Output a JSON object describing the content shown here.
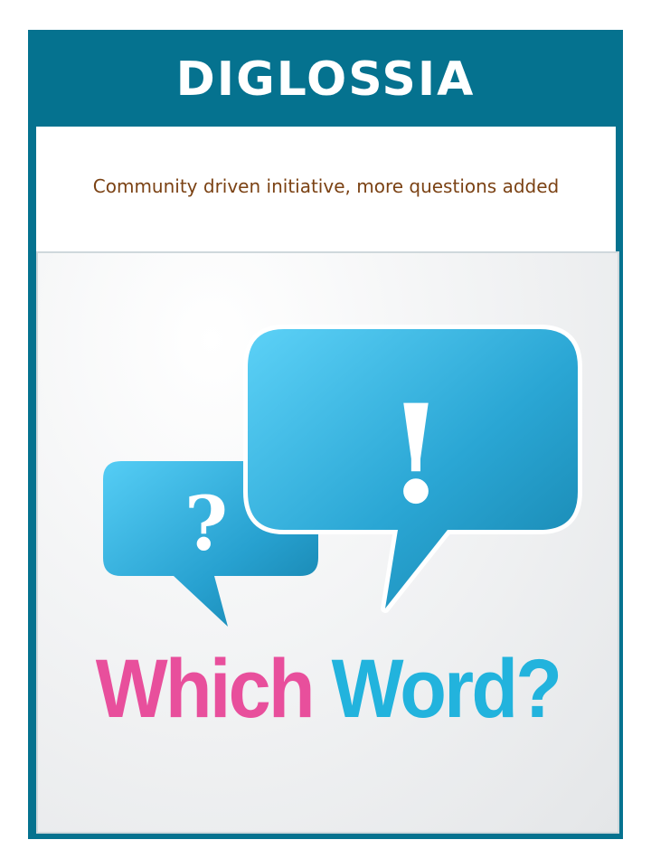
{
  "header": {
    "title": "DIGLOSSIA"
  },
  "subheader": {
    "text": "Community driven initiative, more questions added"
  },
  "illustration": {
    "small_bubble_icon": "question-mark-icon",
    "large_bubble_icon": "exclamation-mark-icon",
    "small_bubble_glyph": "?",
    "large_bubble_glyph": "!",
    "headline_part1": "Which",
    "headline_part2": "Word?"
  },
  "colors": {
    "frame": "#05728f",
    "subtitle_text": "#7b4214",
    "bubble": "#2aa6d4",
    "headline_pink": "#e84f9c",
    "headline_blue": "#22b3dd"
  }
}
